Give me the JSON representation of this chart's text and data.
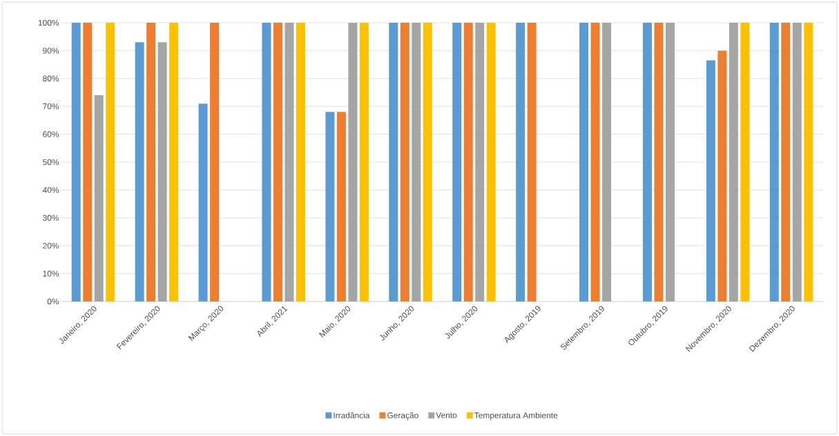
{
  "chart_data": {
    "type": "bar",
    "categories": [
      "Janeiro, 2020",
      "Fevereiro, 2020",
      "Março, 2020",
      "Abril, 2021",
      "Maio, 2020",
      "Junho, 2020",
      "Julho, 2020",
      "Agosto, 2019",
      "Setembro, 2019",
      "Outubro, 2019",
      "Novembro, 2020",
      "Dezembro, 2020"
    ],
    "series": [
      {
        "name": "Irradância",
        "color": "#5b9bd5",
        "values": [
          100,
          93,
          71,
          100,
          68,
          100,
          100,
          100,
          100,
          100,
          86.5,
          100
        ]
      },
      {
        "name": "Geração",
        "color": "#ed7d31",
        "values": [
          100,
          100,
          100,
          100,
          68,
          100,
          100,
          100,
          100,
          100,
          90,
          100
        ]
      },
      {
        "name": "Vento",
        "color": "#a5a5a5",
        "values": [
          74,
          93,
          null,
          100,
          100,
          100,
          100,
          null,
          100,
          100,
          100,
          100
        ]
      },
      {
        "name": "Temperatura Ambiente",
        "color": "#ffc000",
        "values": [
          100,
          100,
          null,
          100,
          100,
          100,
          100,
          null,
          null,
          null,
          100,
          100
        ]
      }
    ],
    "ylim": [
      0,
      100
    ],
    "yticks": [
      {
        "value": 0,
        "label": "0%"
      },
      {
        "value": 10,
        "label": "10%"
      },
      {
        "value": 20,
        "label": "20%"
      },
      {
        "value": 30,
        "label": "30%"
      },
      {
        "value": 40,
        "label": "40%"
      },
      {
        "value": 50,
        "label": "50%"
      },
      {
        "value": 60,
        "label": "60%"
      },
      {
        "value": 70,
        "label": "70%"
      },
      {
        "value": 80,
        "label": "80%"
      },
      {
        "value": 90,
        "label": "90%"
      },
      {
        "value": 100,
        "label": "100%"
      }
    ],
    "grid": "y",
    "legend": "bottom"
  }
}
